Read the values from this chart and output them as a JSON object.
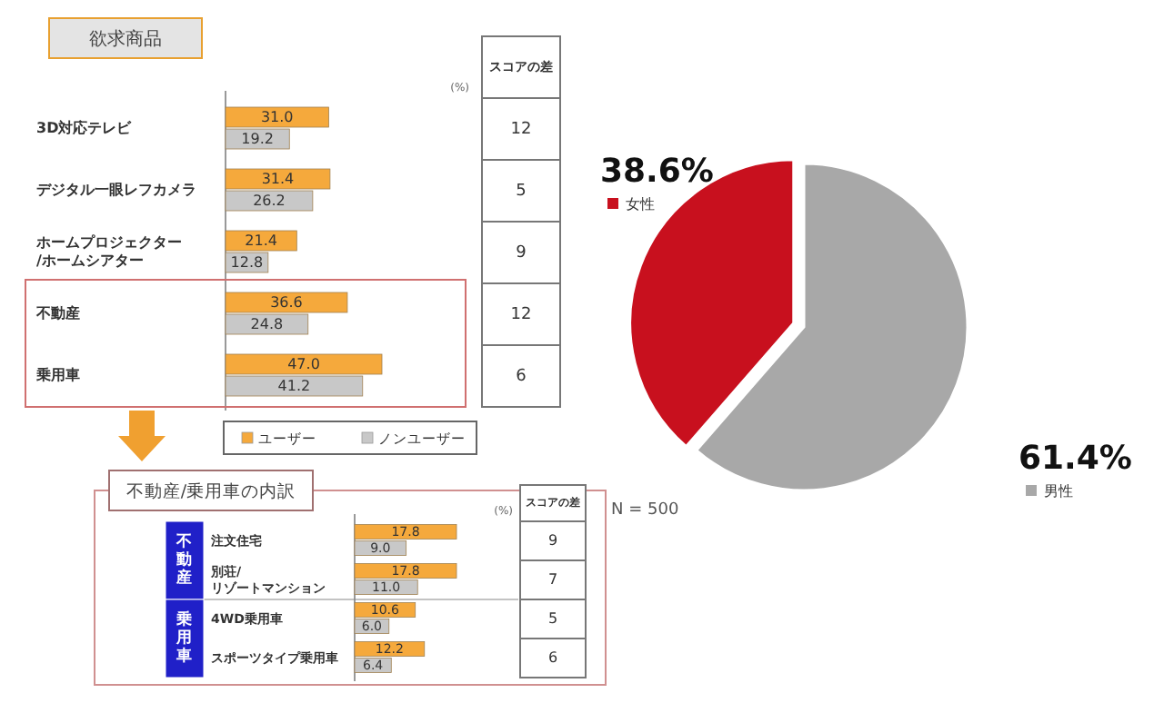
{
  "chart_data": [
    {
      "type": "bar",
      "orientation": "horizontal",
      "title": "欲求商品",
      "categories": [
        "3D対応テレビ",
        "デジタル一眼レフカメラ",
        "ホームプロジェクター\n/ホームシアター",
        "不動産",
        "乗用車"
      ],
      "series": [
        {
          "name": "ユーザー",
          "color": "#f5a93c",
          "values": [
            31.0,
            31.4,
            21.4,
            36.6,
            47.0
          ],
          "value_labels": [
            "31.0",
            "31.4",
            "21.4",
            "36.6",
            "47.0"
          ]
        },
        {
          "name": "ノンユーザー",
          "color": "#c8c8c8",
          "values": [
            19.2,
            26.2,
            12.8,
            24.8,
            41.2
          ],
          "value_labels": [
            "19.2",
            "26.2",
            "12.8",
            "24.8",
            "41.2"
          ]
        }
      ],
      "tick_labels": "y",
      "legend": "bottom",
      "annotations": [
        "(%)",
        "スコアの差",
        "12",
        "5",
        "9",
        "12",
        "6"
      ]
    },
    {
      "type": "bar",
      "orientation": "horizontal",
      "title": "不動産/乗用車の内訳",
      "categories": [
        "注文住宅",
        "別荘/\nリゾートマンション",
        "4WD乗用車",
        "スポーツタイプ乗用車"
      ],
      "series": [
        {
          "color": "#f5a93c",
          "values": [
            17.8,
            17.8,
            10.6,
            12.2
          ],
          "value_labels": [
            "17.8",
            "17.8",
            "10.6",
            "12.2"
          ]
        },
        {
          "color": "#c8c8c8",
          "values": [
            9.0,
            11.0,
            6.0,
            6.4
          ],
          "value_labels": [
            "9.0",
            "11.0",
            "6.0",
            "6.4"
          ]
        }
      ],
      "tick_labels": "y",
      "annotations": [
        "不動産",
        "乗用車",
        "(%)",
        "スコアの差",
        "9",
        "7",
        "5",
        "6"
      ]
    },
    {
      "type": "pie",
      "categories": [
        "女性",
        "男性"
      ],
      "values": [
        38.6,
        61.4
      ],
      "colors": [
        "#c8101e",
        "#a8a8a8"
      ],
      "value_labels": [
        "38.6%",
        "61.4%"
      ],
      "legend": "bottom right",
      "annotations": [
        "N = 500"
      ]
    }
  ]
}
